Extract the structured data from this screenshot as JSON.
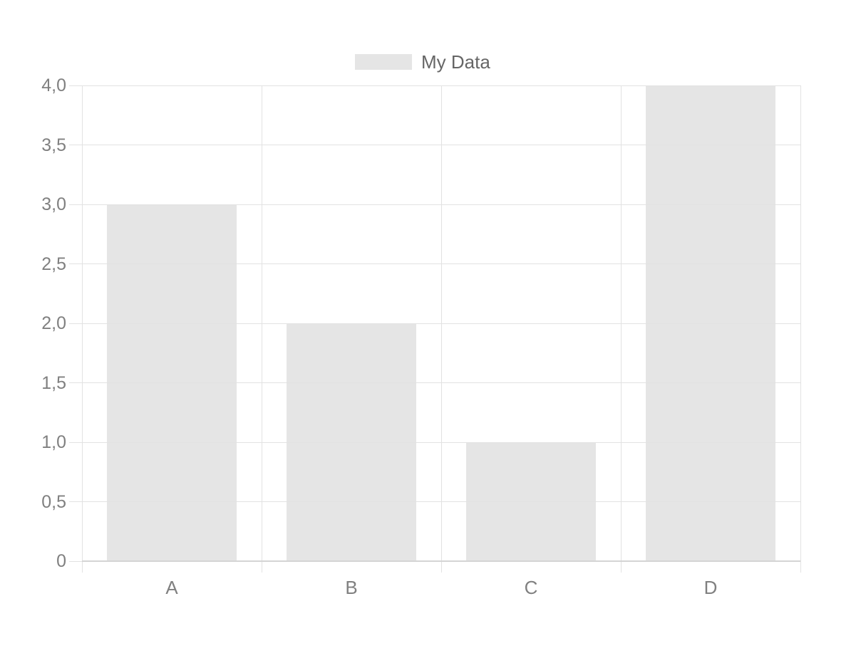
{
  "chart_data": {
    "type": "bar",
    "categories": [
      "A",
      "B",
      "C",
      "D"
    ],
    "series": [
      {
        "name": "My Data",
        "values": [
          3,
          2,
          1,
          4
        ]
      }
    ],
    "ylim": [
      0,
      4
    ],
    "y_tick_step": 0.5,
    "y_tick_labels": [
      "0",
      "0,5",
      "1,0",
      "1,5",
      "2,0",
      "2,5",
      "3,0",
      "3,5",
      "4,0"
    ],
    "decimal_separator": ",",
    "grid": true,
    "legend_position": "top",
    "colors": {
      "bar_fill": "#e5e5e5",
      "grid_line": "#e2e2e2",
      "axis_baseline": "#d4d4d4",
      "tick_text": "#808080",
      "legend_text": "#666666",
      "background": "#ffffff"
    }
  }
}
